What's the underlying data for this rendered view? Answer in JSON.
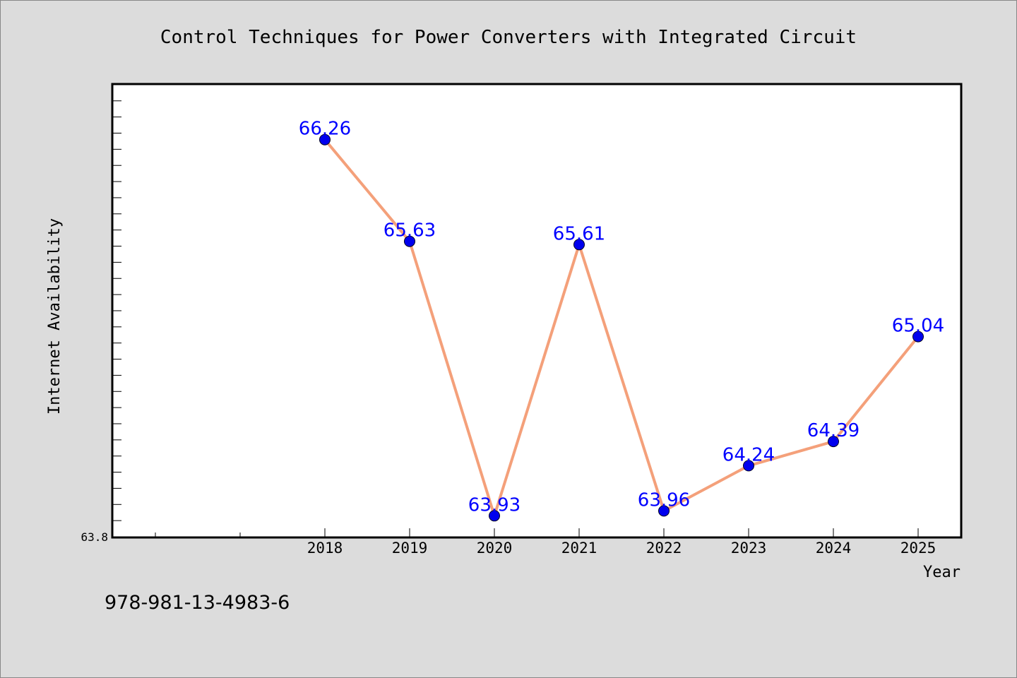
{
  "chart_data": {
    "type": "line",
    "title": "Control Techniques for Power Converters with Integrated Circuit",
    "xlabel": "Year",
    "ylabel": "Internet Availability",
    "x": [
      "2018",
      "2019",
      "2020",
      "2021",
      "2022",
      "2023",
      "2024",
      "2025"
    ],
    "series": [
      {
        "values": [
          66.26,
          65.63,
          63.93,
          65.61,
          63.96,
          64.24,
          64.39,
          65.04
        ]
      }
    ],
    "data_labels": [
      "66.26",
      "65.63",
      "63.93",
      "65.61",
      "63.96",
      "64.24",
      "64.39",
      "65.04"
    ],
    "y_tick_label": "63.8",
    "ylim": [
      63.8,
      66.6
    ],
    "grid": false,
    "legend": "none",
    "colors": {
      "line": "#f4a07a",
      "marker": "#0000ee",
      "data_label": "#0000ff",
      "plot_background": "#ffffff",
      "page_background": "#dcdcdc"
    }
  },
  "footer": {
    "isbn": "978-981-13-4983-6"
  }
}
